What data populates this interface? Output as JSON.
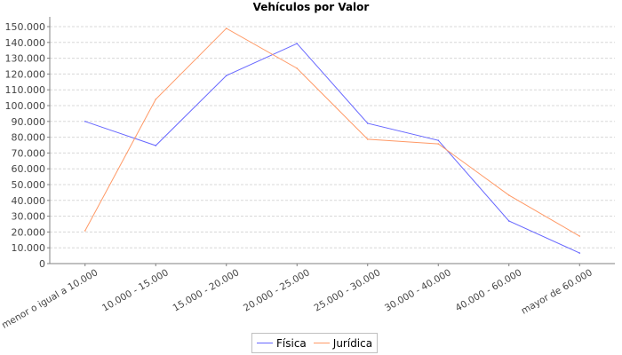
{
  "chart_data": {
    "type": "line",
    "title": "Vehículos por Valor",
    "xlabel": "",
    "ylabel": "",
    "categories": [
      "menor o igual a 10.000",
      "10.000 - 15.000",
      "15.000 - 20.000",
      "20.000 - 25.000",
      "25.000 - 30.000",
      "30.000 - 40.000",
      "40.000 - 60.000",
      "mayor de 60.000"
    ],
    "ylim": [
      0,
      150000
    ],
    "yticks": [
      0,
      10000,
      20000,
      30000,
      40000,
      50000,
      60000,
      70000,
      80000,
      90000,
      100000,
      110000,
      120000,
      130000,
      140000,
      150000
    ],
    "ytick_labels": [
      "0",
      "10.000",
      "20.000",
      "30.000",
      "40.000",
      "50.000",
      "60.000",
      "70.000",
      "80.000",
      "90.000",
      "100.000",
      "110.000",
      "120.000",
      "130.000",
      "140.000",
      "150.000"
    ],
    "grid": true,
    "legend": "bottom",
    "series": [
      {
        "name": "Física",
        "color": "#6666ff",
        "values": [
          90000,
          74700,
          119000,
          139300,
          88800,
          78000,
          27000,
          6700
        ]
      },
      {
        "name": "Jurídica",
        "color": "#ff9966",
        "values": [
          20800,
          104000,
          148900,
          123600,
          78700,
          75800,
          43300,
          17400
        ]
      }
    ]
  }
}
